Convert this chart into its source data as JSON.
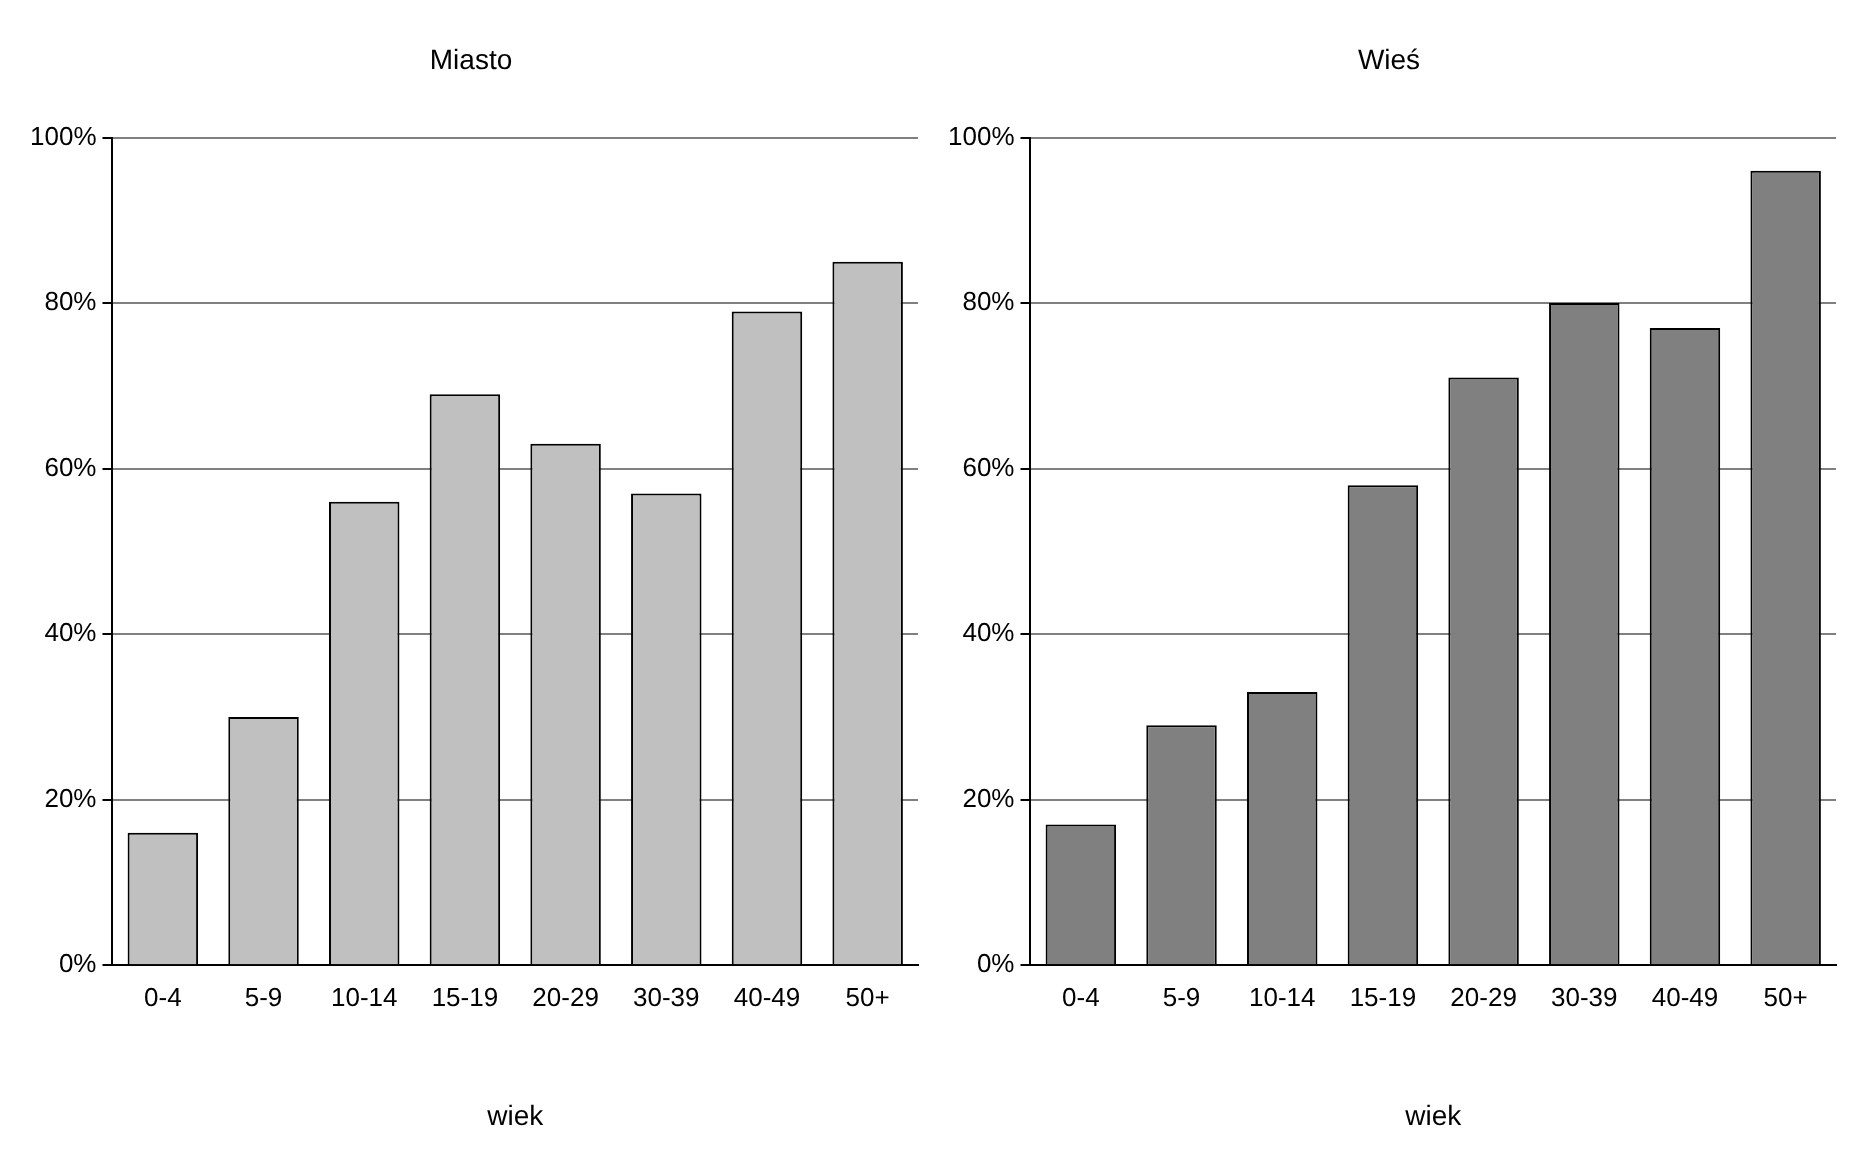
{
  "chart_data": [
    {
      "type": "bar",
      "title": "Miasto",
      "xlabel": "wiek",
      "categories": [
        "0-4",
        "5-9",
        "10-14",
        "15-19",
        "20-29",
        "30-39",
        "40-49",
        "50+"
      ],
      "values": [
        16,
        30,
        56,
        69,
        63,
        57,
        79,
        85
      ],
      "color": "#c0c0c0",
      "ylim": [
        0,
        100
      ],
      "yticks": [
        {
          "value": 0,
          "label": "0%"
        },
        {
          "value": 20,
          "label": "20%"
        },
        {
          "value": 40,
          "label": "40%"
        },
        {
          "value": 60,
          "label": "60%"
        },
        {
          "value": 80,
          "label": "80%"
        },
        {
          "value": 100,
          "label": "100%"
        }
      ],
      "grid": "y",
      "legend": false
    },
    {
      "type": "bar",
      "title": "Wieś",
      "xlabel": "wiek",
      "categories": [
        "0-4",
        "5-9",
        "10-14",
        "15-19",
        "20-29",
        "30-39",
        "40-49",
        "50+"
      ],
      "values": [
        17,
        29,
        33,
        58,
        71,
        80,
        77,
        96
      ],
      "color": "#808080",
      "ylim": [
        0,
        100
      ],
      "yticks": [
        {
          "value": 0,
          "label": "0%"
        },
        {
          "value": 20,
          "label": "20%"
        },
        {
          "value": 40,
          "label": "40%"
        },
        {
          "value": 60,
          "label": "60%"
        },
        {
          "value": 80,
          "label": "80%"
        },
        {
          "value": 100,
          "label": "100%"
        }
      ],
      "grid": "y",
      "legend": false
    }
  ]
}
